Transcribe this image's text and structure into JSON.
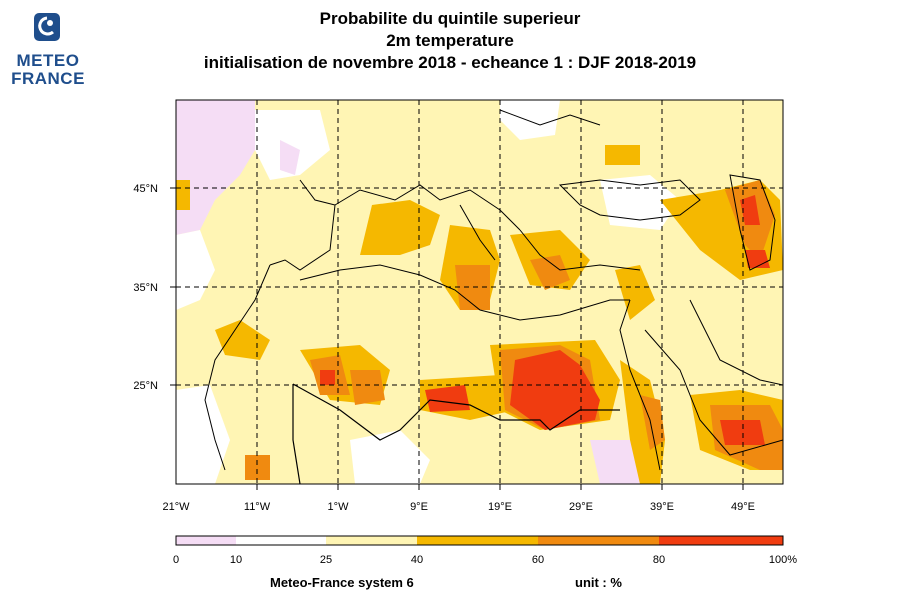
{
  "header": {
    "logo_line1": "METEO",
    "logo_line2": "FRANCE",
    "title": "Probabilite du quintile superieur",
    "subtitle": "2m temperature",
    "run_info": "initialisation de novembre 2018  -  echeance 1 : DJF 2018-2019"
  },
  "map": {
    "lon_labels": [
      "21°W",
      "11°W",
      "1°W",
      "9°E",
      "19°E",
      "29°E",
      "39°E",
      "49°E"
    ],
    "lon_values": [
      -21,
      -11,
      -1,
      9,
      19,
      29,
      39,
      49
    ],
    "lat_labels": [
      "45°N",
      "35°N",
      "25°N"
    ],
    "lat_values": [
      45,
      35,
      25
    ],
    "extent": {
      "lon_min": -21,
      "lon_max": 53,
      "lat_min": 15,
      "lat_max": 53
    }
  },
  "legend": {
    "tick_labels": [
      "0",
      "10",
      "25",
      "40",
      "60",
      "80",
      "100%"
    ],
    "tick_values": [
      0,
      10,
      25,
      40,
      60,
      80,
      100
    ],
    "colors": [
      "#f5ddf5",
      "#ffffff",
      "#fff5b4",
      "#f5b800",
      "#f08a10",
      "#f03c10"
    ],
    "system_label": "Meteo-France system 6",
    "unit_label": "unit : %"
  }
}
